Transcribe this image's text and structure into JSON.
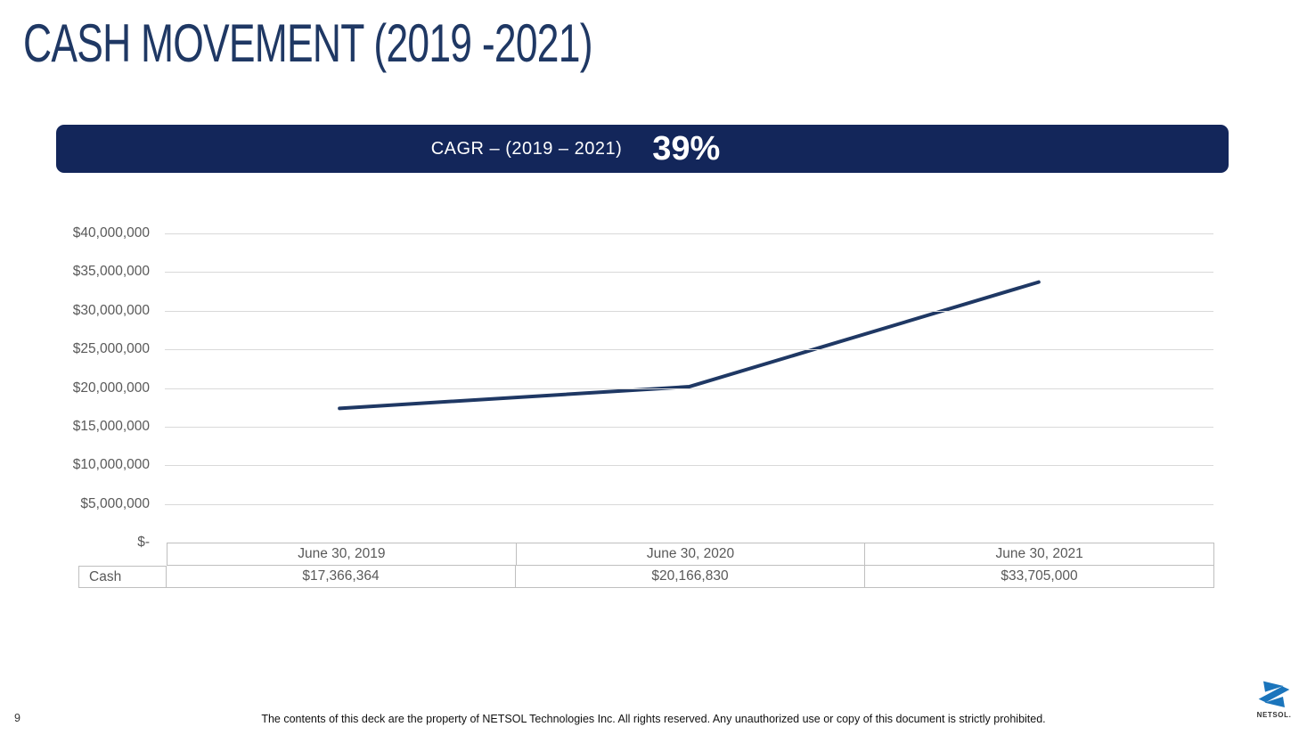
{
  "slide": {
    "title": "CASH MOVEMENT (2019 -2021)",
    "banner": {
      "label": "CAGR – (2019 – 2021)",
      "value": "39%"
    },
    "footer": {
      "page_number": "9",
      "copyright": "The contents of this deck are the property of NETSOL Technologies Inc. All rights reserved. Any unauthorized use or copy of this document is strictly prohibited."
    },
    "logo_text": "NETSOL."
  },
  "colors": {
    "title_navy": "#1F3864",
    "banner_navy": "#13265A",
    "line_navy": "#1F3864",
    "grid_gray": "#D9D9D9",
    "table_border_gray": "#BFBFBF",
    "axis_text_gray": "#595959",
    "logo_blue": "#1B75BC"
  },
  "chart_data": {
    "type": "line",
    "title": "",
    "categories": [
      "June 30, 2019",
      "June 30, 2020",
      "June 30, 2021"
    ],
    "series": [
      {
        "name": "Cash",
        "values": [
          17366364,
          20166830,
          33705000
        ]
      }
    ],
    "value_labels": [
      "$17,366,364",
      "$20,166,830",
      "$33,705,000"
    ],
    "y_ticks": [
      "$40,000,000",
      "$35,000,000",
      "$30,000,000",
      "$25,000,000",
      "$20,000,000",
      "$15,000,000",
      "$10,000,000",
      "$5,000,000",
      "$-"
    ],
    "ylim": [
      0,
      40000000
    ],
    "xlabel": "",
    "ylabel": "",
    "grid": true,
    "legend_position": "none",
    "line_color": "#1F3864",
    "grid_color": "#D9D9D9"
  },
  "table": {
    "row_label": "Cash",
    "columns": [
      "June 30, 2019",
      "June 30, 2020",
      "June 30, 2021"
    ],
    "values": [
      "$17,366,364",
      "$20,166,830",
      "$33,705,000"
    ]
  }
}
